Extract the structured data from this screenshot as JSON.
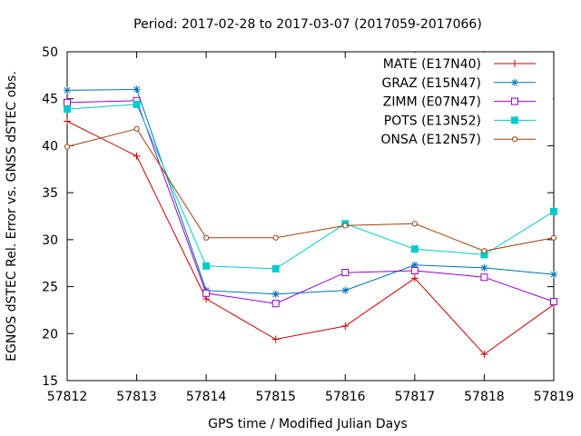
{
  "chart_data": {
    "type": "line",
    "title": "Period: 2017-02-28 to 2017-03-07 (2017059-2017066)",
    "xlabel": "GPS time / Modified Julian Days",
    "ylabel": "EGNOS dSTEC Rel. Error vs. GNSS dSTEC obs.",
    "xlim": [
      57812,
      57819
    ],
    "ylim": [
      15,
      50
    ],
    "xticks": [
      57812,
      57813,
      57814,
      57815,
      57816,
      57817,
      57818,
      57819
    ],
    "yticks": [
      15,
      20,
      25,
      30,
      35,
      40,
      45,
      50
    ],
    "grid": false,
    "legend_position": "top-right",
    "x": [
      57812,
      57813,
      57814,
      57815,
      57816,
      57817,
      57818,
      57819
    ],
    "series": [
      {
        "name": "MATE (E17N40)",
        "color": "#cc0000",
        "marker": "plus",
        "values": [
          42.6,
          38.9,
          23.7,
          19.4,
          20.8,
          25.9,
          17.8,
          23.1
        ]
      },
      {
        "name": "GRAZ (E15N47)",
        "color": "#0072b2",
        "marker": "star",
        "values": [
          45.9,
          46.0,
          24.6,
          24.2,
          24.6,
          27.3,
          27.0,
          26.3
        ]
      },
      {
        "name": "ZIMM (E07N47)",
        "color": "#9400d3",
        "marker": "open-square",
        "values": [
          44.6,
          44.8,
          24.3,
          23.2,
          26.5,
          26.7,
          26.0,
          23.4
        ]
      },
      {
        "name": "POTS (E13N52)",
        "color": "#00cccc",
        "marker": "filled-square",
        "values": [
          43.9,
          44.4,
          27.2,
          26.9,
          31.7,
          29.0,
          28.4,
          33.0
        ]
      },
      {
        "name": "ONSA (E12N57)",
        "color": "#a0410d",
        "marker": "open-circle",
        "values": [
          39.9,
          41.8,
          30.2,
          30.2,
          31.5,
          31.7,
          28.8,
          30.2
        ]
      }
    ]
  }
}
